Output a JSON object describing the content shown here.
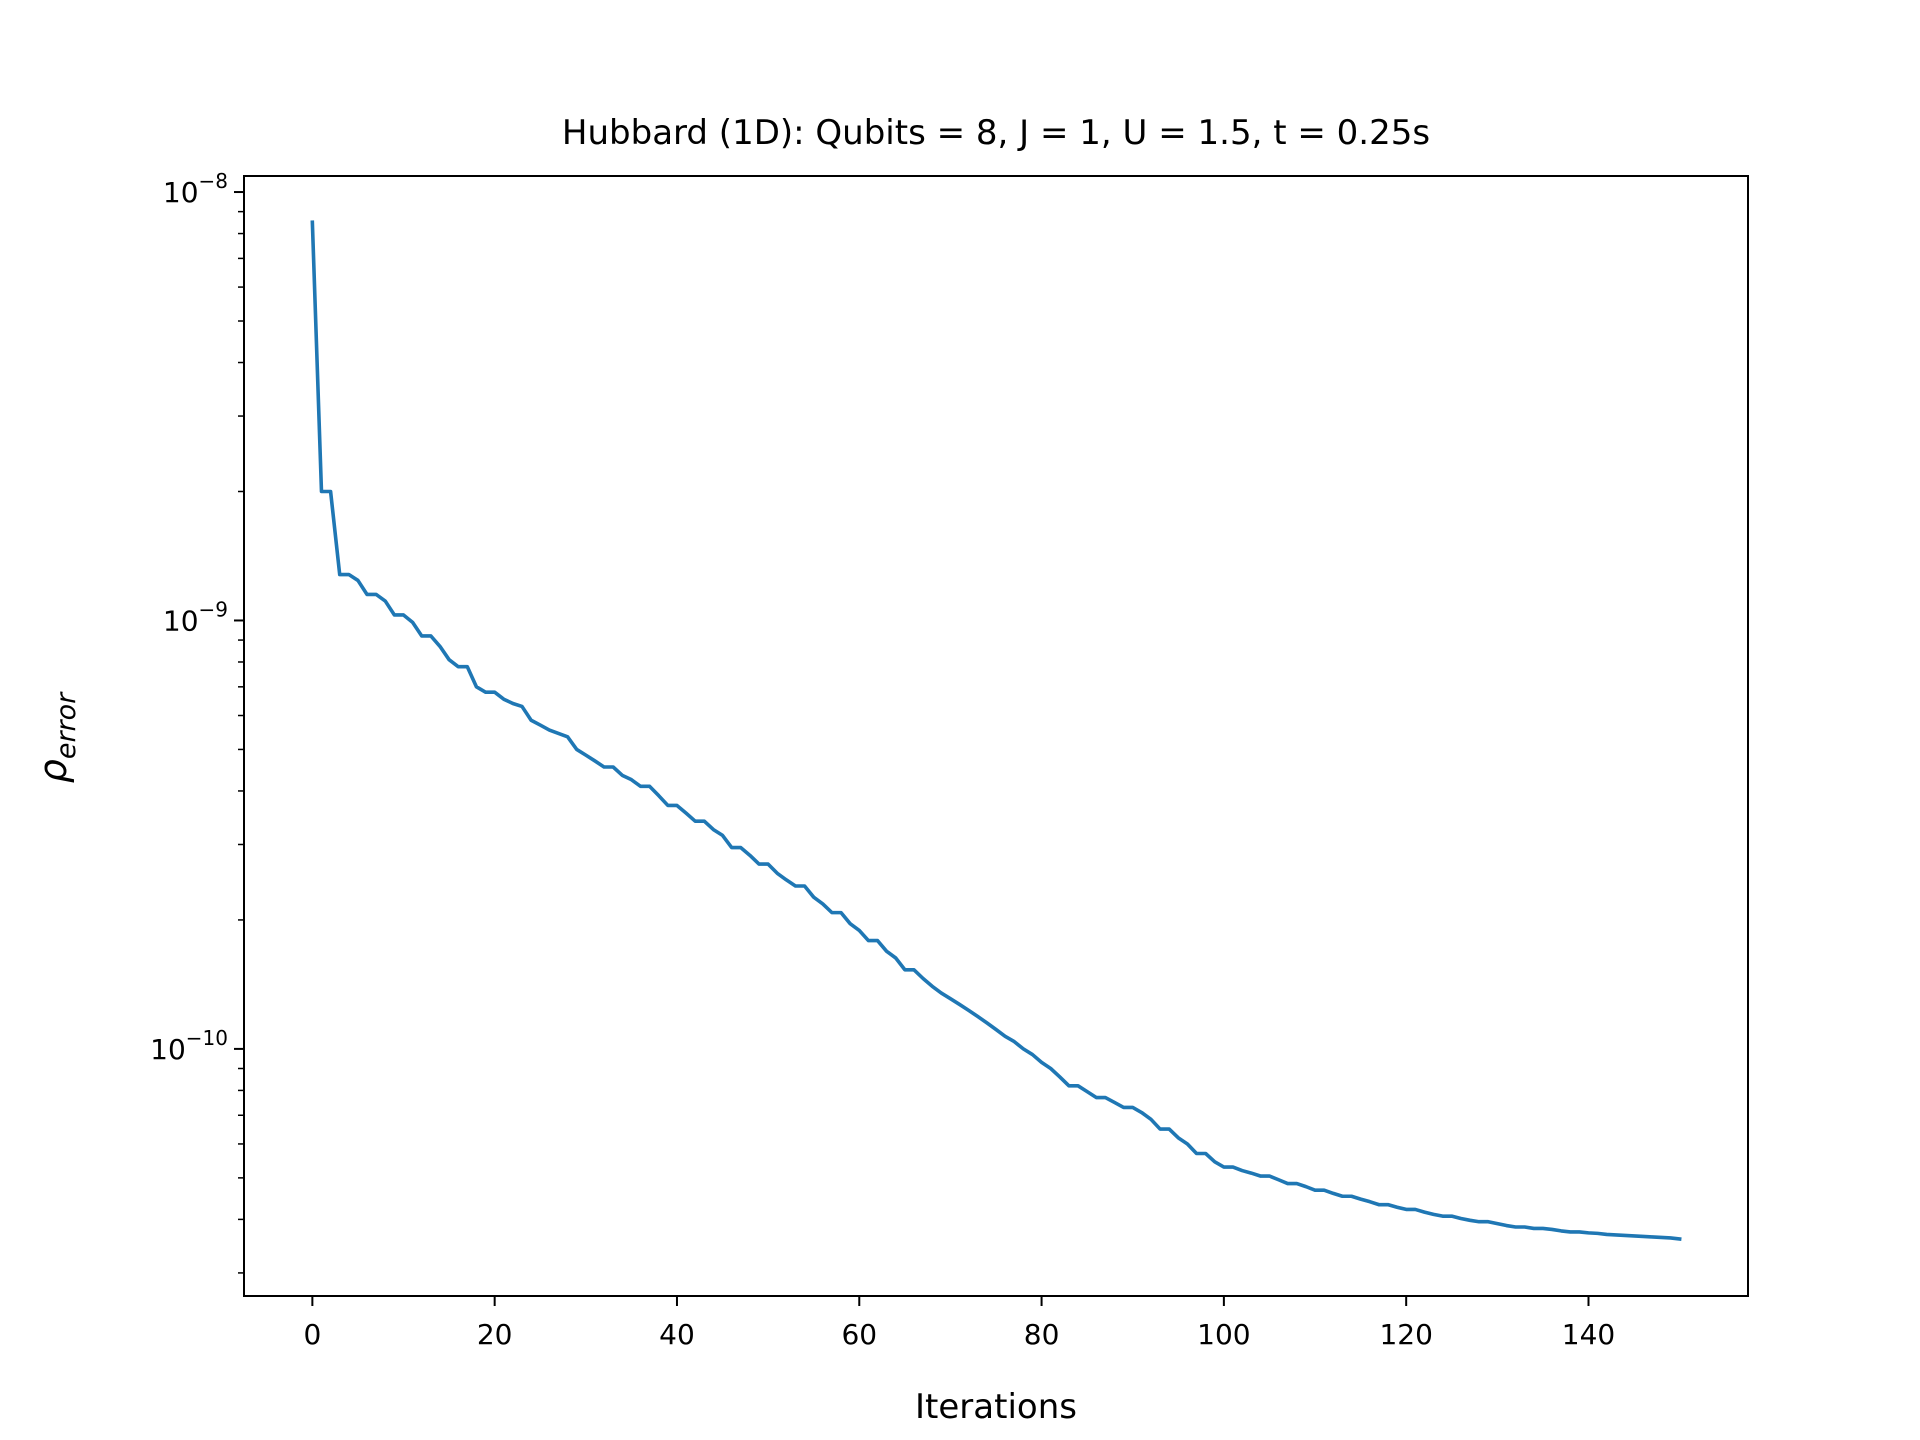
{
  "chart_data": {
    "type": "line",
    "title": "Hubbard (1D): Qubits = 8, J = 1, U = 1.5, t = 0.25s",
    "xlabel": "Iterations",
    "ylabel_base": "ρ",
    "ylabel_sub": "error",
    "x_scale": "linear",
    "y_scale": "log",
    "xlim": [
      -7.5,
      157.5
    ],
    "ylim": [
      2.65e-11,
      1.09e-08
    ],
    "grid": false,
    "x_ticks": [
      0,
      20,
      40,
      60,
      80,
      100,
      120,
      140
    ],
    "x_tick_labels": [
      "0",
      "20",
      "40",
      "60",
      "80",
      "100",
      "120",
      "140"
    ],
    "y_major_ticks": [
      {
        "value": 1e-08,
        "base": "10",
        "exp": "−8"
      },
      {
        "value": 1e-09,
        "base": "10",
        "exp": "−9"
      },
      {
        "value": 1e-10,
        "base": "10",
        "exp": "−10"
      }
    ],
    "y_minor_ticks": [
      3e-11,
      4e-11,
      5e-11,
      6e-11,
      7e-11,
      8e-11,
      9e-11,
      2e-10,
      3e-10,
      4e-10,
      5e-10,
      6e-10,
      7e-10,
      8e-10,
      9e-10,
      2e-09,
      3e-09,
      4e-09,
      5e-09,
      6e-09,
      7e-09,
      8e-09,
      9e-09
    ],
    "series": [
      {
        "color": "#1f77b4",
        "points": [
          [
            0,
            8.5e-09
          ],
          [
            1,
            2e-09
          ],
          [
            2,
            2e-09
          ],
          [
            3,
            1.28e-09
          ],
          [
            4,
            1.28e-09
          ],
          [
            5,
            1.24e-09
          ],
          [
            6,
            1.15e-09
          ],
          [
            7,
            1.15e-09
          ],
          [
            8,
            1.11e-09
          ],
          [
            9,
            1.03e-09
          ],
          [
            10,
            1.03e-09
          ],
          [
            11,
            9.9e-10
          ],
          [
            12,
            9.2e-10
          ],
          [
            13,
            9.2e-10
          ],
          [
            14,
            8.7e-10
          ],
          [
            15,
            8.1e-10
          ],
          [
            16,
            7.8e-10
          ],
          [
            17,
            7.8e-10
          ],
          [
            18,
            7e-10
          ],
          [
            19,
            6.8e-10
          ],
          [
            20,
            6.8e-10
          ],
          [
            21,
            6.55e-10
          ],
          [
            22,
            6.4e-10
          ],
          [
            23,
            6.3e-10
          ],
          [
            24,
            5.85e-10
          ],
          [
            25,
            5.7e-10
          ],
          [
            26,
            5.55e-10
          ],
          [
            27,
            5.45e-10
          ],
          [
            28,
            5.35e-10
          ],
          [
            29,
            5e-10
          ],
          [
            30,
            4.85e-10
          ],
          [
            31,
            4.7e-10
          ],
          [
            32,
            4.55e-10
          ],
          [
            33,
            4.55e-10
          ],
          [
            34,
            4.35e-10
          ],
          [
            35,
            4.25e-10
          ],
          [
            36,
            4.1e-10
          ],
          [
            37,
            4.1e-10
          ],
          [
            38,
            3.9e-10
          ],
          [
            39,
            3.7e-10
          ],
          [
            40,
            3.7e-10
          ],
          [
            41,
            3.55e-10
          ],
          [
            42,
            3.4e-10
          ],
          [
            43,
            3.4e-10
          ],
          [
            44,
            3.25e-10
          ],
          [
            45,
            3.15e-10
          ],
          [
            46,
            2.95e-10
          ],
          [
            47,
            2.95e-10
          ],
          [
            48,
            2.83e-10
          ],
          [
            49,
            2.7e-10
          ],
          [
            50,
            2.7e-10
          ],
          [
            51,
            2.57e-10
          ],
          [
            52,
            2.48e-10
          ],
          [
            53,
            2.4e-10
          ],
          [
            54,
            2.4e-10
          ],
          [
            55,
            2.26e-10
          ],
          [
            56,
            2.18e-10
          ],
          [
            57,
            2.08e-10
          ],
          [
            58,
            2.08e-10
          ],
          [
            59,
            1.96e-10
          ],
          [
            60,
            1.89e-10
          ],
          [
            61,
            1.79e-10
          ],
          [
            62,
            1.79e-10
          ],
          [
            63,
            1.69e-10
          ],
          [
            64,
            1.63e-10
          ],
          [
            65,
            1.53e-10
          ],
          [
            66,
            1.53e-10
          ],
          [
            67,
            1.46e-10
          ],
          [
            68,
            1.4e-10
          ],
          [
            69,
            1.35e-10
          ],
          [
            70,
            1.31e-10
          ],
          [
            71,
            1.27e-10
          ],
          [
            72,
            1.23e-10
          ],
          [
            73,
            1.19e-10
          ],
          [
            74,
            1.15e-10
          ],
          [
            75,
            1.11e-10
          ],
          [
            76,
            1.07e-10
          ],
          [
            77,
            1.04e-10
          ],
          [
            78,
            1e-10
          ],
          [
            79,
            9.7e-11
          ],
          [
            80,
            9.3e-11
          ],
          [
            81,
            9e-11
          ],
          [
            82,
            8.6e-11
          ],
          [
            83,
            8.2e-11
          ],
          [
            84,
            8.2e-11
          ],
          [
            85,
            7.95e-11
          ],
          [
            86,
            7.7e-11
          ],
          [
            87,
            7.7e-11
          ],
          [
            88,
            7.5e-11
          ],
          [
            89,
            7.3e-11
          ],
          [
            90,
            7.3e-11
          ],
          [
            91,
            7.1e-11
          ],
          [
            92,
            6.85e-11
          ],
          [
            93,
            6.5e-11
          ],
          [
            94,
            6.5e-11
          ],
          [
            95,
            6.2e-11
          ],
          [
            96,
            6e-11
          ],
          [
            97,
            5.7e-11
          ],
          [
            98,
            5.7e-11
          ],
          [
            99,
            5.45e-11
          ],
          [
            100,
            5.3e-11
          ],
          [
            101,
            5.3e-11
          ],
          [
            102,
            5.2e-11
          ],
          [
            103,
            5.13e-11
          ],
          [
            104,
            5.05e-11
          ],
          [
            105,
            5.05e-11
          ],
          [
            106,
            4.95e-11
          ],
          [
            107,
            4.85e-11
          ],
          [
            108,
            4.85e-11
          ],
          [
            109,
            4.77e-11
          ],
          [
            110,
            4.68e-11
          ],
          [
            111,
            4.68e-11
          ],
          [
            112,
            4.6e-11
          ],
          [
            113,
            4.53e-11
          ],
          [
            114,
            4.53e-11
          ],
          [
            115,
            4.46e-11
          ],
          [
            116,
            4.4e-11
          ],
          [
            117,
            4.33e-11
          ],
          [
            118,
            4.33e-11
          ],
          [
            119,
            4.27e-11
          ],
          [
            120,
            4.22e-11
          ],
          [
            121,
            4.22e-11
          ],
          [
            122,
            4.16e-11
          ],
          [
            123,
            4.11e-11
          ],
          [
            124,
            4.07e-11
          ],
          [
            125,
            4.07e-11
          ],
          [
            126,
            4.02e-11
          ],
          [
            127,
            3.98e-11
          ],
          [
            128,
            3.95e-11
          ],
          [
            129,
            3.95e-11
          ],
          [
            130,
            3.91e-11
          ],
          [
            131,
            3.87e-11
          ],
          [
            132,
            3.84e-11
          ],
          [
            133,
            3.84e-11
          ],
          [
            134,
            3.81e-11
          ],
          [
            135,
            3.81e-11
          ],
          [
            136,
            3.79e-11
          ],
          [
            137,
            3.76e-11
          ],
          [
            138,
            3.74e-11
          ],
          [
            139,
            3.74e-11
          ],
          [
            140,
            3.72e-11
          ],
          [
            141,
            3.71e-11
          ],
          [
            142,
            3.69e-11
          ],
          [
            143,
            3.68e-11
          ],
          [
            144,
            3.67e-11
          ],
          [
            145,
            3.66e-11
          ],
          [
            146,
            3.65e-11
          ],
          [
            147,
            3.64e-11
          ],
          [
            148,
            3.63e-11
          ],
          [
            149,
            3.62e-11
          ],
          [
            150,
            3.6e-11
          ]
        ]
      }
    ]
  }
}
